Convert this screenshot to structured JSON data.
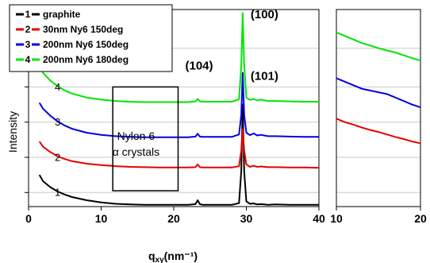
{
  "chart_data": [
    {
      "type": "line",
      "xlabel_main": "q",
      "xlabel_sub": "xy",
      "xlabel_unit": "(nm⁻¹)",
      "ylabel": "Intensity",
      "xlim": [
        0,
        40
      ],
      "xticks": [
        0,
        10,
        20,
        30,
        40
      ],
      "grid": true,
      "legend_position": "top-left",
      "legend": [
        {
          "key": "1",
          "label": "graphite",
          "color": "#000000"
        },
        {
          "key": "2",
          "label": "30nm Ny6 150deg",
          "color": "#e60000"
        },
        {
          "key": "3",
          "label": "200nm Ny6 150deg",
          "color": "#0000e6"
        },
        {
          "key": "4",
          "label": "200nm Ny6 180deg",
          "color": "#00e600"
        }
      ],
      "series": [
        {
          "name": "graphite",
          "label": "1",
          "color": "#000000",
          "x": [
            1.5,
            2,
            3,
            4,
            5,
            6,
            8,
            10,
            12,
            14,
            16,
            18,
            20,
            22,
            23.0,
            23.3,
            23.6,
            24,
            26,
            28,
            29.0,
            29.3,
            29.5,
            29.7,
            30.0,
            30.5,
            31,
            31.5,
            32,
            33,
            34,
            36,
            38,
            40
          ],
          "y": [
            0.9,
            0.72,
            0.55,
            0.43,
            0.34,
            0.27,
            0.18,
            0.12,
            0.08,
            0.06,
            0.05,
            0.05,
            0.05,
            0.05,
            0.07,
            0.18,
            0.07,
            0.05,
            0.05,
            0.05,
            0.1,
            1.0,
            2.9,
            1.0,
            0.15,
            0.08,
            0.09,
            0.06,
            0.07,
            0.05,
            0.06,
            0.05,
            0.05,
            0.05
          ]
        },
        {
          "name": "30nm Ny6 150deg",
          "label": "2",
          "color": "#e60000",
          "x": [
            1.5,
            2,
            3,
            4,
            5,
            6,
            8,
            10,
            12,
            14,
            16,
            18,
            20,
            22,
            23.0,
            23.3,
            23.6,
            24,
            26,
            28,
            29.0,
            29.3,
            29.5,
            29.7,
            30.0,
            30.5,
            31,
            31.5,
            32,
            33,
            34,
            36,
            38,
            40
          ],
          "y": [
            1.85,
            1.7,
            1.55,
            1.43,
            1.35,
            1.29,
            1.22,
            1.18,
            1.15,
            1.13,
            1.12,
            1.11,
            1.11,
            1.11,
            1.12,
            1.2,
            1.12,
            1.11,
            1.11,
            1.11,
            1.15,
            1.6,
            2.2,
            1.6,
            1.2,
            1.13,
            1.16,
            1.13,
            1.14,
            1.12,
            1.12,
            1.11,
            1.11,
            1.1
          ]
        },
        {
          "name": "200nm Ny6 150deg",
          "label": "3",
          "color": "#0000e6",
          "x": [
            1.5,
            2,
            3,
            4,
            5,
            6,
            8,
            10,
            12,
            14,
            16,
            18,
            20,
            22,
            23.0,
            23.3,
            23.6,
            24,
            26,
            28,
            29.0,
            29.3,
            29.5,
            29.7,
            30.0,
            30.5,
            31,
            31.5,
            32,
            33,
            34,
            36,
            38,
            40
          ],
          "y": [
            2.95,
            2.78,
            2.58,
            2.42,
            2.3,
            2.21,
            2.1,
            2.04,
            2.0,
            1.98,
            1.97,
            1.97,
            1.97,
            1.97,
            1.99,
            2.07,
            1.99,
            1.98,
            1.98,
            1.98,
            2.05,
            2.6,
            3.8,
            2.6,
            2.1,
            2.03,
            2.08,
            2.02,
            2.04,
            2.0,
            2.0,
            1.99,
            1.98,
            1.98
          ]
        },
        {
          "name": "200nm Ny6 180deg",
          "label": "4",
          "color": "#00e600",
          "x": [
            1.5,
            2,
            3,
            4,
            5,
            6,
            8,
            10,
            12,
            14,
            16,
            18,
            20,
            22,
            23.0,
            23.3,
            23.6,
            24,
            26,
            28,
            29.0,
            29.3,
            29.5,
            29.7,
            30.0,
            30.5,
            31,
            31.5,
            32,
            33,
            34,
            36,
            38,
            40
          ],
          "y": [
            4.0,
            3.8,
            3.58,
            3.42,
            3.3,
            3.21,
            3.1,
            3.04,
            3.0,
            2.98,
            2.97,
            2.97,
            2.97,
            2.97,
            2.99,
            3.06,
            2.99,
            2.98,
            2.98,
            2.98,
            3.05,
            4.0,
            5.5,
            4.0,
            3.1,
            3.03,
            3.06,
            3.02,
            3.04,
            3.0,
            3.0,
            2.99,
            2.98,
            2.98
          ]
        }
      ],
      "annotations": [
        {
          "text": "(100)",
          "x": 32.5,
          "y": 5.35
        },
        {
          "text": "(101)",
          "x": 32.5,
          "y": 3.6
        },
        {
          "text": "(104)",
          "x": 23.5,
          "y": 3.9
        },
        {
          "text": "Nylon 6",
          "x": 14.8,
          "y": 1.9
        },
        {
          "text": "α crystals",
          "x": 14.8,
          "y": 1.45
        }
      ],
      "region_box": {
        "x0": 11.6,
        "x1": 20.6,
        "y0": 0.45,
        "y1": 3.4
      },
      "gridlines_y": [
        0.4,
        1.4,
        2.4,
        3.4,
        4.5
      ]
    },
    {
      "type": "line",
      "xlim": [
        10,
        20
      ],
      "xticks": [
        10,
        20
      ],
      "grid": true,
      "gridlines_y": [
        0.4,
        1.4,
        2.4,
        3.4,
        4.5
      ],
      "series": [
        {
          "color": "#e60000",
          "x": [
            10,
            11,
            12,
            13,
            14,
            15,
            16,
            17,
            18,
            19,
            20
          ],
          "y": [
            2.5,
            2.4,
            2.33,
            2.25,
            2.18,
            2.12,
            2.05,
            1.98,
            1.92,
            1.85,
            1.8
          ]
        },
        {
          "color": "#0000e6",
          "x": [
            10,
            11,
            12,
            13,
            14,
            15,
            16,
            17,
            18,
            19,
            20
          ],
          "y": [
            3.65,
            3.55,
            3.45,
            3.35,
            3.3,
            3.25,
            3.2,
            3.1,
            3.0,
            2.9,
            2.82
          ]
        },
        {
          "color": "#00e600",
          "x": [
            10,
            11,
            12,
            13,
            14,
            15,
            16,
            17,
            18,
            19,
            20
          ],
          "y": [
            4.95,
            4.85,
            4.75,
            4.65,
            4.58,
            4.5,
            4.44,
            4.38,
            4.3,
            4.22,
            4.15
          ]
        }
      ]
    }
  ]
}
